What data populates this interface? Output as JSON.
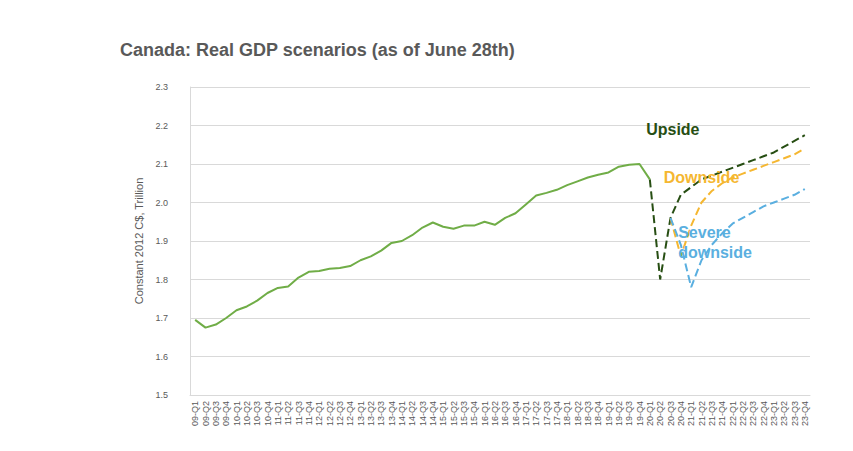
{
  "chart_data": {
    "type": "line",
    "title": "Canada: Real GDP scenarios (as of June 28th)",
    "y_label": "Constant 2012 C$, Trillion",
    "categories": [
      "09-Q1",
      "09-Q2",
      "09-Q3",
      "09-Q4",
      "10-Q1",
      "10-Q2",
      "10-Q3",
      "10-Q4",
      "11-Q1",
      "11-Q2",
      "11-Q3",
      "11-Q4",
      "12-Q1",
      "12-Q2",
      "12-Q3",
      "12-Q4",
      "13-Q1",
      "13-Q2",
      "13-Q3",
      "13-Q4",
      "14-Q1",
      "14-Q2",
      "14-Q3",
      "14-Q4",
      "15-Q1",
      "15-Q2",
      "15-Q3",
      "15-Q4",
      "16-Q1",
      "16-Q2",
      "16-Q3",
      "16-Q4",
      "17-Q1",
      "17-Q2",
      "17-Q3",
      "17-Q4",
      "18-Q1",
      "18-Q2",
      "18-Q3",
      "18-Q4",
      "19-Q1",
      "19-Q2",
      "19-Q3",
      "19-Q4",
      "20-Q1",
      "20-Q2",
      "20-Q3",
      "20-Q4",
      "21-Q1",
      "21-Q2",
      "21-Q3",
      "21-Q4",
      "22-Q1",
      "22-Q2",
      "22-Q3",
      "22-Q4",
      "23-Q1",
      "23-Q2",
      "23-Q3",
      "23-Q4"
    ],
    "series": [
      {
        "color": "#70ad47",
        "line_style": "solid",
        "values": [
          1.695,
          1.675,
          1.683,
          1.7,
          1.72,
          1.73,
          1.745,
          1.765,
          1.778,
          1.782,
          1.805,
          1.82,
          1.822,
          1.828,
          1.83,
          1.835,
          1.85,
          1.86,
          1.875,
          1.895,
          1.9,
          1.915,
          1.935,
          1.948,
          1.937,
          1.932,
          1.94,
          1.94,
          1.95,
          1.942,
          1.96,
          1.972,
          1.995,
          2.018,
          2.025,
          2.033,
          2.045,
          2.055,
          2.065,
          2.072,
          2.078,
          2.093,
          2.098,
          2.1,
          2.06,
          null,
          null,
          null,
          null,
          null,
          null,
          null,
          null,
          null,
          null,
          null,
          null,
          null,
          null,
          null
        ]
      },
      {
        "name": "Upside",
        "color": "#274e13",
        "line_style": "dashed",
        "values": [
          null,
          null,
          null,
          null,
          null,
          null,
          null,
          null,
          null,
          null,
          null,
          null,
          null,
          null,
          null,
          null,
          null,
          null,
          null,
          null,
          null,
          null,
          null,
          null,
          null,
          null,
          null,
          null,
          null,
          null,
          null,
          null,
          null,
          null,
          null,
          null,
          null,
          null,
          null,
          null,
          null,
          null,
          null,
          null,
          2.06,
          1.8,
          1.96,
          2.02,
          2.04,
          2.06,
          2.07,
          2.08,
          2.09,
          2.1,
          2.11,
          2.12,
          2.13,
          2.145,
          2.16,
          2.175
        ]
      },
      {
        "name": "Downside",
        "color": "#f5b731",
        "line_style": "dashed",
        "values": [
          null,
          null,
          null,
          null,
          null,
          null,
          null,
          null,
          null,
          null,
          null,
          null,
          null,
          null,
          null,
          null,
          null,
          null,
          null,
          null,
          null,
          null,
          null,
          null,
          null,
          null,
          null,
          null,
          null,
          null,
          null,
          null,
          null,
          null,
          null,
          null,
          null,
          null,
          null,
          null,
          null,
          null,
          null,
          null,
          null,
          null,
          1.96,
          1.86,
          1.94,
          2.0,
          2.03,
          2.05,
          2.065,
          2.075,
          2.085,
          2.095,
          2.105,
          2.115,
          2.125,
          2.14
        ]
      },
      {
        "name": "Severe downside",
        "color": "#5aafe0",
        "line_style": "dashed",
        "values": [
          null,
          null,
          null,
          null,
          null,
          null,
          null,
          null,
          null,
          null,
          null,
          null,
          null,
          null,
          null,
          null,
          null,
          null,
          null,
          null,
          null,
          null,
          null,
          null,
          null,
          null,
          null,
          null,
          null,
          null,
          null,
          null,
          null,
          null,
          null,
          null,
          null,
          null,
          null,
          null,
          null,
          null,
          null,
          null,
          null,
          null,
          1.96,
          1.89,
          1.78,
          1.85,
          1.89,
          1.92,
          1.945,
          1.96,
          1.975,
          1.99,
          2.0,
          2.01,
          2.02,
          2.035
        ]
      }
    ],
    "ylim": [
      1.5,
      2.3
    ],
    "yticks": [
      1.5,
      1.6,
      1.7,
      1.8,
      1.9,
      {
        "value": 2,
        "label": "2.0"
      },
      2.1,
      2.2,
      2.3
    ],
    "grid": true
  }
}
